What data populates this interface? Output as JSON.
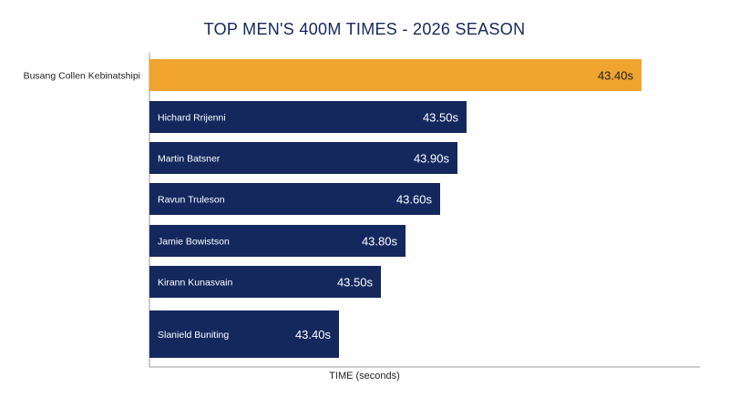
{
  "chart_data": {
    "type": "bar",
    "orientation": "horizontal",
    "title": "TOP MEN'S 400M TIMES - 2026 SEASON",
    "xlabel": "TIME (seconds)",
    "ylabel": "",
    "grid": false,
    "legend": "none",
    "categories": [
      "Busang Collen Kebinatshipi",
      "Hichard Rrijenni",
      "Martin Batsner",
      "Ravun Truleson",
      "Jamie Bowistson",
      "Kirann Kunasvain",
      "Slanield Buniting"
    ],
    "values": [
      43.4,
      43.5,
      43.9,
      43.6,
      43.8,
      43.5,
      43.4
    ],
    "bar_fraction": [
      1.0,
      0.645,
      0.625,
      0.59,
      0.52,
      0.47,
      0.385
    ],
    "value_labels": [
      "43.40s",
      "43.50s",
      "43.90s",
      "43.60s",
      "43.80s",
      "43.50s",
      "43.40s"
    ],
    "label_inside": [
      false,
      true,
      true,
      true,
      true,
      true,
      true
    ],
    "highlight_index": 0,
    "colors": {
      "highlight": "#F0A32F",
      "bar": "#14285E",
      "title": "#14285E",
      "axis": "#999999",
      "label_dark": "#222222",
      "label_light": "#ffffff"
    }
  }
}
